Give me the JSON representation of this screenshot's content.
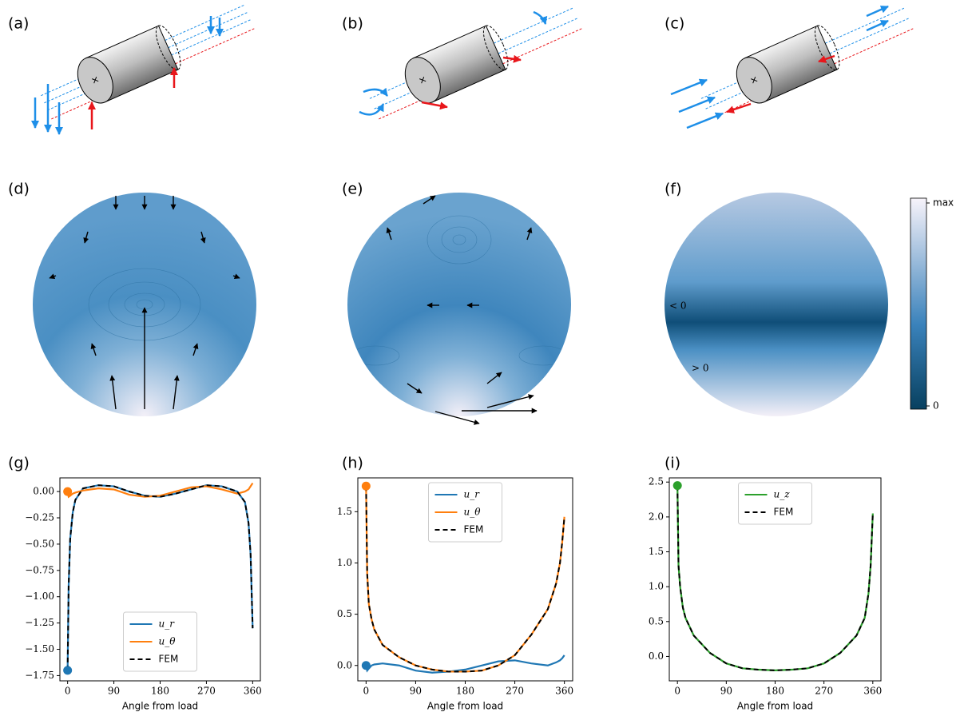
{
  "panel_labels": [
    "(a)",
    "(b)",
    "(c)",
    "(d)",
    "(e)",
    "(f)",
    "(g)",
    "(h)",
    "(i)"
  ],
  "colorbar": {
    "top_label": "max",
    "bottom_label": "0"
  },
  "annotations": [
    "< 0",
    "> 0"
  ],
  "chart_data": [
    {
      "type": "line",
      "xlabel": "Angle from load",
      "x": [
        0,
        2,
        5,
        10,
        15,
        30,
        60,
        90,
        120,
        150,
        180,
        210,
        240,
        270,
        300,
        330,
        345,
        352,
        356,
        360
      ],
      "xlim": [
        -15,
        375
      ],
      "xticks": [
        0,
        90,
        180,
        270,
        360
      ],
      "ylim": [
        -1.8,
        0.13
      ],
      "yticks": [
        {
          "value": -1.75,
          "label": "−1.75"
        },
        {
          "value": -1.5,
          "label": "−1.50"
        },
        {
          "value": -1.25,
          "label": "−1.25"
        },
        {
          "value": -1.0,
          "label": "−1.00"
        },
        {
          "value": -0.75,
          "label": "−0.75"
        },
        {
          "value": -0.5,
          "label": "−0.50"
        },
        {
          "value": -0.25,
          "label": "−0.25"
        },
        {
          "value": 0,
          "label": "0.00"
        }
      ],
      "legend": "lower center",
      "series": [
        {
          "name": "u_r",
          "color": "#1f77b4",
          "marker": true,
          "values": [
            -1.7,
            -0.9,
            -0.45,
            -0.2,
            -0.08,
            0.03,
            0.06,
            0.05,
            0.0,
            -0.04,
            -0.05,
            -0.02,
            0.02,
            0.06,
            0.05,
            0.0,
            -0.1,
            -0.3,
            -0.6,
            -1.3
          ]
        },
        {
          "name": "u_θ",
          "color": "#ff7f0e",
          "marker": true,
          "values": [
            0.0,
            -0.05,
            -0.04,
            -0.02,
            -0.01,
            0.01,
            0.03,
            0.02,
            -0.03,
            -0.05,
            -0.04,
            0.0,
            0.04,
            0.05,
            0.02,
            -0.02,
            0.0,
            0.02,
            0.05,
            0.08
          ]
        },
        {
          "name": "FEM",
          "color": "#000000",
          "dashed": true,
          "values": [
            -1.7,
            -0.9,
            -0.45,
            -0.2,
            -0.08,
            0.03,
            0.06,
            0.05,
            0.0,
            -0.04,
            -0.05,
            -0.02,
            0.02,
            0.06,
            0.05,
            0.0,
            -0.1,
            -0.3,
            -0.6,
            -1.3
          ]
        }
      ]
    },
    {
      "type": "line",
      "xlabel": "Angle from load",
      "x": [
        0,
        2,
        5,
        10,
        15,
        30,
        60,
        90,
        120,
        150,
        180,
        210,
        240,
        270,
        300,
        330,
        345,
        352,
        356,
        360
      ],
      "xlim": [
        -15,
        375
      ],
      "xticks": [
        0,
        90,
        180,
        270,
        360
      ],
      "ylim": [
        -0.15,
        1.83
      ],
      "yticks": [
        {
          "value": 0,
          "label": "0.0"
        },
        0.5,
        {
          "value": 1,
          "label": "1.0"
        },
        1.5
      ],
      "legend": "upper center",
      "series": [
        {
          "name": "u_r",
          "color": "#1f77b4",
          "marker": true,
          "values": [
            0.0,
            -0.05,
            -0.03,
            0.0,
            0.01,
            0.02,
            0.0,
            -0.05,
            -0.07,
            -0.06,
            -0.04,
            0.0,
            0.04,
            0.05,
            0.02,
            0.0,
            0.03,
            0.05,
            0.07,
            0.1
          ]
        },
        {
          "name": "u_θ",
          "color": "#ff7f0e",
          "marker": true,
          "values": [
            1.75,
            0.9,
            0.6,
            0.45,
            0.35,
            0.2,
            0.08,
            0.0,
            -0.04,
            -0.06,
            -0.06,
            -0.05,
            0.0,
            0.1,
            0.3,
            0.55,
            0.8,
            1.0,
            1.2,
            1.45
          ]
        },
        {
          "name": "FEM",
          "color": "#000000",
          "dashed": true,
          "values": [
            1.75,
            0.9,
            0.6,
            0.45,
            0.35,
            0.2,
            0.08,
            0.0,
            -0.04,
            -0.06,
            -0.06,
            -0.05,
            0.0,
            0.1,
            0.3,
            0.55,
            0.8,
            1.0,
            1.2,
            1.45
          ]
        }
      ]
    },
    {
      "type": "line",
      "xlabel": "Angle from load",
      "x": [
        0,
        2,
        5,
        10,
        15,
        30,
        60,
        90,
        120,
        150,
        180,
        210,
        240,
        270,
        300,
        330,
        345,
        352,
        356,
        360
      ],
      "xlim": [
        -15,
        375
      ],
      "xticks": [
        0,
        90,
        180,
        270,
        360
      ],
      "ylim": [
        -0.35,
        2.56
      ],
      "yticks": [
        {
          "value": 0,
          "label": "0.0"
        },
        0.5,
        {
          "value": 1,
          "label": "1.0"
        },
        1.5,
        {
          "value": 2,
          "label": "2.0"
        },
        2.5
      ],
      "legend": "upper center",
      "series": [
        {
          "name": "u_z",
          "color": "#2ca02c",
          "marker": true,
          "values": [
            2.45,
            1.3,
            1.0,
            0.7,
            0.55,
            0.3,
            0.05,
            -0.1,
            -0.17,
            -0.19,
            -0.2,
            -0.19,
            -0.17,
            -0.1,
            0.05,
            0.3,
            0.55,
            0.9,
            1.3,
            2.05
          ]
        },
        {
          "name": "FEM",
          "color": "#000000",
          "dashed": true,
          "values": [
            2.45,
            1.3,
            1.0,
            0.7,
            0.55,
            0.3,
            0.05,
            -0.1,
            -0.17,
            -0.19,
            -0.2,
            -0.19,
            -0.17,
            -0.1,
            0.05,
            0.3,
            0.55,
            0.9,
            1.3,
            2.05
          ]
        }
      ]
    }
  ]
}
